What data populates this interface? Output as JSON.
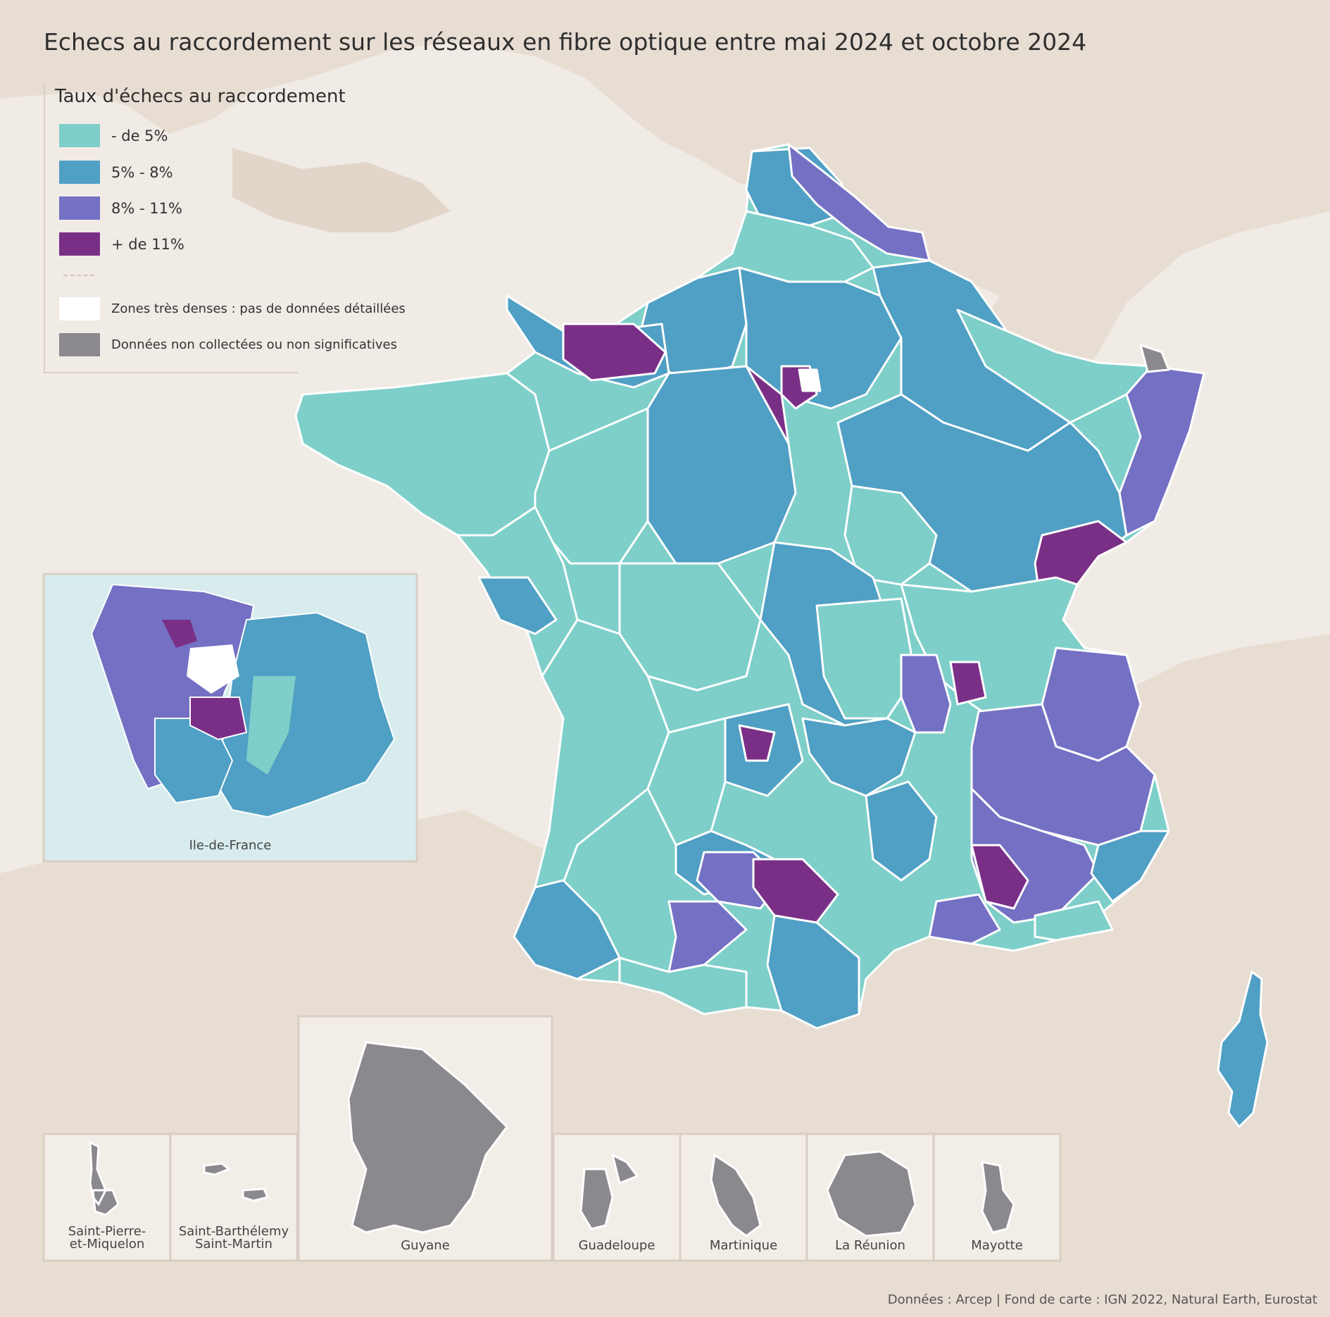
{
  "title": "Echecs au raccordement sur les réseaux en fibre optique entre mai 2024 et octobre 2024",
  "legend": {
    "title": "Taux d'échecs au raccordement",
    "classes": [
      {
        "label": "- de 5%",
        "color": "#7ecfc9"
      },
      {
        "label": "5% - 8%",
        "color": "#509fc4"
      },
      {
        "label": "8% - 11%",
        "color": "#7470c4"
      },
      {
        "label": "+ de 11%",
        "color": "#7a2f86"
      }
    ],
    "extras": [
      {
        "label": "Zones très denses : pas de données détaillées",
        "color": "#ffffff"
      },
      {
        "label": "Données non collectées ou non significatives",
        "color": "#8b898d"
      }
    ]
  },
  "insets": {
    "idf": "Ile-de-France",
    "spm": "Saint-Pierre-\net-Miquelon",
    "sbsm": "Saint-Barthélemy\nSaint-Martin",
    "guyane": "Guyane",
    "guadeloupe": "Guadeloupe",
    "martinique": "Martinique",
    "reunion": "La Réunion",
    "mayotte": "Mayotte"
  },
  "credits": "Données : Arcep | Fond de carte : IGN 2022, Natural Earth, Eurostat",
  "colors": {
    "sea": "#f3ede7",
    "land": "#e7ddd2",
    "border": "#ffffff",
    "inset_frame": "#d9cec4"
  }
}
